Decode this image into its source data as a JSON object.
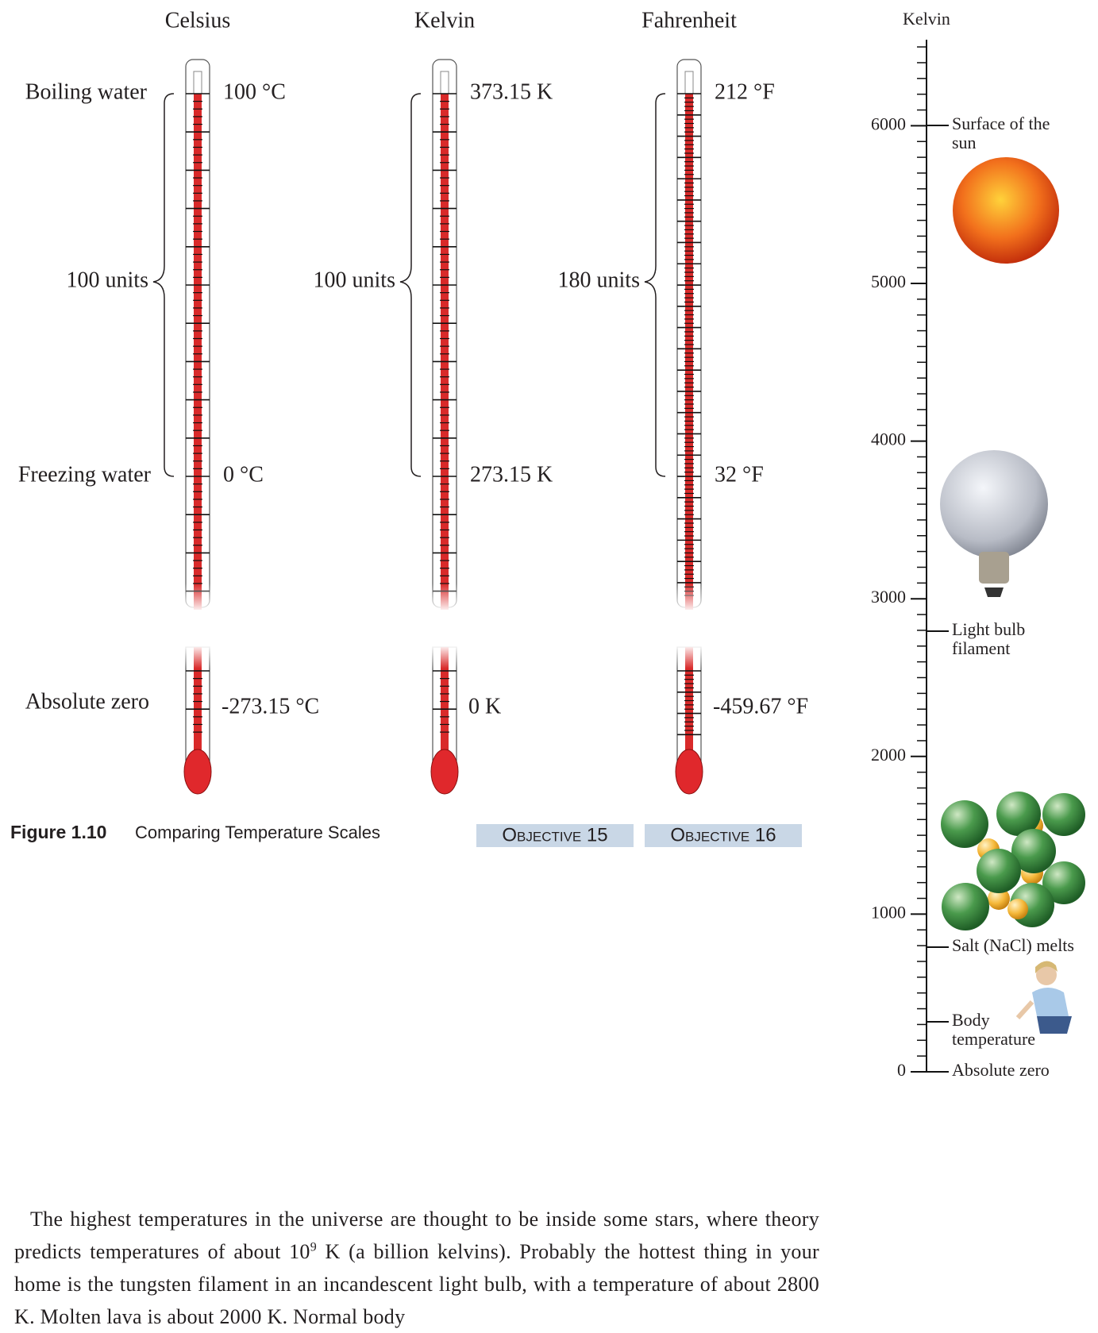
{
  "thermometers": [
    {
      "scale": "Celsius",
      "boiling": "100 °C",
      "freezing": "0 °C",
      "absolute_zero": "-273.15 °C",
      "span": "100 units"
    },
    {
      "scale": "Kelvin",
      "boiling": "373.15 K",
      "freezing": "273.15 K",
      "absolute_zero": "0 K",
      "span": "100 units"
    },
    {
      "scale": "Fahrenheit",
      "boiling": "212 °F",
      "freezing": "32 °F",
      "absolute_zero": "-459.67 °F",
      "span": "180 units"
    }
  ],
  "row_labels": {
    "boiling": "Boiling water",
    "freezing": "Freezing water",
    "absolute_zero": "Absolute zero"
  },
  "figure": {
    "number": "Figure 1.10",
    "title": "Comparing Temperature Scales",
    "objectives": [
      "Objective 15",
      "Objective 16"
    ]
  },
  "kelvin_scale": {
    "title": "Kelvin",
    "ticks": [
      "0",
      "1000",
      "2000",
      "3000",
      "4000",
      "5000",
      "6000"
    ],
    "annotations": [
      [
        "Surface of the",
        "sun"
      ],
      [
        "Light bulb",
        "filament"
      ],
      [
        "Salt (NaCl) melts"
      ],
      [
        "Body",
        "temperature"
      ],
      [
        "Absolute zero"
      ]
    ]
  },
  "paragraph": {
    "before": "The highest temperatures in the universe are thought to be inside some stars, where theory predicts temperatures of about 10",
    "superscript": "9",
    "after": " K (a billion kelvins). Probably the hottest thing in your home is the tungsten filament in an incandescent light bulb, with a temperature of about 2800 K. Molten lava is about 2000 K. Normal body"
  }
}
